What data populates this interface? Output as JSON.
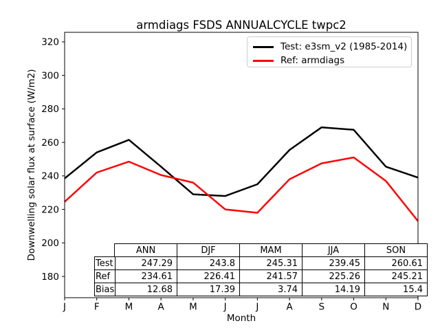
{
  "chart_data": {
    "type": "line",
    "title": "armdiags FSDS ANNUALCYCLE twpc2",
    "xlabel": "Month",
    "ylabel": "Downwelling solar flux at surface (W/m2)",
    "categories": [
      "J",
      "F",
      "M",
      "A",
      "M",
      "J",
      "J",
      "A",
      "S",
      "O",
      "N",
      "D"
    ],
    "yticks": [
      180,
      200,
      220,
      240,
      260,
      280,
      300,
      320
    ],
    "ylim": [
      167.3,
      325.7
    ],
    "grid": false,
    "legend_position": "upper right",
    "series": [
      {
        "name": "Test: e3sm_v2 (1985-2014)",
        "color": "#000000",
        "values": [
          238.5,
          254,
          261.5,
          245.5,
          229,
          228,
          235,
          255.5,
          269,
          267.5,
          245.5,
          239
        ]
      },
      {
        "name": "Ref: armdiags",
        "color": "#ff0000",
        "values": [
          224.5,
          242,
          248.5,
          240.5,
          236,
          220,
          218,
          238,
          247.5,
          251,
          237,
          213
        ]
      }
    ],
    "table": {
      "columns": [
        "ANN",
        "DJF",
        "MAM",
        "JJA",
        "SON"
      ],
      "rows": [
        {
          "label": "Test",
          "values": [
            "247.29",
            "243.8",
            "245.31",
            "239.45",
            "260.61"
          ]
        },
        {
          "label": "Ref",
          "values": [
            "234.61",
            "226.41",
            "241.57",
            "225.26",
            "245.21"
          ]
        },
        {
          "label": "Bias",
          "values": [
            "12.68",
            "17.39",
            "3.74",
            "14.19",
            "15.4"
          ]
        }
      ]
    }
  }
}
